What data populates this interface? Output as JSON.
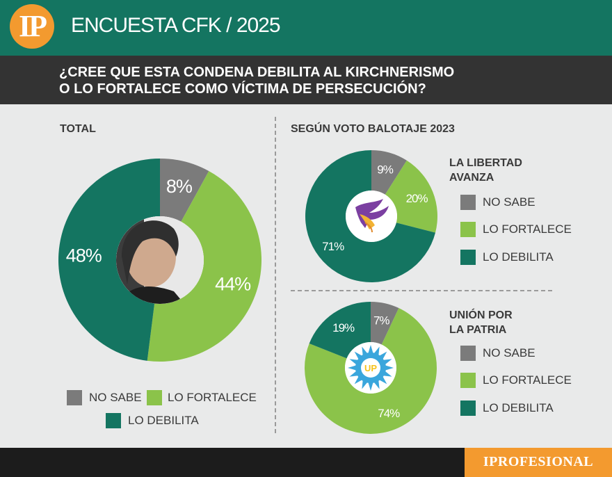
{
  "header": {
    "logo": "IP",
    "title": "ENCUESTA CFK / 2025"
  },
  "question": {
    "line1": "¿CREE QUE ESTA CONDENA DEBILITA AL KIRCHNERISMO",
    "line2": "O LO FORTALECE COMO VÍCTIMA DE PERSECUCIÓN?"
  },
  "colors": {
    "no_sabe": "#7b7b7b",
    "lo_fortalece": "#8bc34a",
    "lo_debilita": "#147561",
    "header_green": "#147561",
    "question_band": "#333333",
    "brand_orange": "#f39a2f"
  },
  "chart_data": [
    {
      "type": "pie",
      "title": "TOTAL",
      "categories": [
        "NO SABE",
        "LO FORTALECE",
        "LO DEBILITA"
      ],
      "values": [
        8,
        44,
        48
      ],
      "labels": [
        "8%",
        "44%",
        "48%"
      ],
      "center_image": "portrait"
    },
    {
      "type": "pie",
      "group_title": "SEGÚN VOTO BALOTAJE 2023",
      "title": "LA LIBERTAD AVANZA",
      "categories": [
        "NO SABE",
        "LO FORTALECE",
        "LO DEBILITA"
      ],
      "values": [
        9,
        20,
        71
      ],
      "labels": [
        "9%",
        "20%",
        "71%"
      ],
      "center_image": "lla-eagle-logo"
    },
    {
      "type": "pie",
      "title": "UNIÓN POR LA PATRIA",
      "categories": [
        "NO SABE",
        "LO FORTALECE",
        "LO DEBILITA"
      ],
      "values": [
        7,
        74,
        19
      ],
      "labels": [
        "7%",
        "74%",
        "19%"
      ],
      "center_image": "up-sun-logo"
    }
  ],
  "sections": {
    "total": "TOTAL",
    "segun": "SEGÚN VOTO BALOTAJE 2023",
    "lla_line1": "LA LIBERTAD",
    "lla_line2": "AVANZA",
    "up_line1": "UNIÓN POR",
    "up_line2": "LA PATRIA"
  },
  "legend": {
    "no_sabe": "NO SABE",
    "lo_fortalece": "LO FORTALECE",
    "lo_debilita": "LO DEBILITA"
  },
  "footer": {
    "brand": "IPROFESIONAL"
  },
  "logos": {
    "up_text": "UP"
  }
}
